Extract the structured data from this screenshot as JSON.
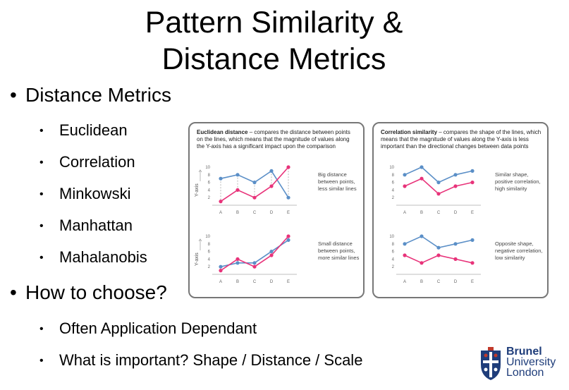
{
  "slide": {
    "title_line1": "Pattern Similarity &",
    "title_line2": "Distance Metrics"
  },
  "bullets": {
    "b1": "Distance Metrics",
    "sub1": [
      "Euclidean",
      "Correlation",
      "Minkowski",
      "Manhattan",
      "Mahalanobis"
    ],
    "b2": "How to choose?",
    "sub2": [
      "Often Application Dependant",
      "What is important? Shape / Distance / Scale"
    ],
    "marker": "•"
  },
  "figure": {
    "left_caption_bold": "Euclidean distance",
    "left_caption_rest": " – compares the distance between points on the lines, which means that the magnitude of values along the Y-axis has a significant impact upon the comparison",
    "right_caption_bold": "Correlation similarity",
    "right_caption_rest": " – compares the shape of the lines, which means that the magnitude of values along the Y-axis is less important than the directional changes between data points",
    "notes": {
      "tl": [
        "Big distance",
        "between points,",
        "less similar lines"
      ],
      "bl": [
        "Small distance",
        "between points,",
        "more similar lines"
      ],
      "tr": [
        "Similar shape,",
        "positive correlation,",
        "high similarity"
      ],
      "br": [
        "Opposite shape,",
        "negative correlation,",
        "low similarity"
      ]
    },
    "y_axis_label": "Y-axis",
    "colors": {
      "blue": "#5b8fc7",
      "pink": "#e8337a"
    }
  },
  "chart_data": [
    {
      "type": "line",
      "categories": [
        "A",
        "B",
        "C",
        "D",
        "E"
      ],
      "yticks": [
        2,
        4,
        6,
        8,
        10
      ],
      "ylim": [
        0,
        10
      ],
      "ylabel": "Y-axis",
      "series": [
        {
          "color": "#5b8fc7",
          "values": [
            7,
            8,
            6,
            9,
            2
          ]
        },
        {
          "color": "#e8337a",
          "values": [
            1,
            4,
            2,
            5,
            10
          ]
        }
      ]
    },
    {
      "type": "line",
      "categories": [
        "A",
        "B",
        "C",
        "D",
        "E"
      ],
      "yticks": [
        2,
        4,
        6,
        8,
        10
      ],
      "ylim": [
        0,
        10
      ],
      "ylabel": "Y-axis",
      "series": [
        {
          "color": "#5b8fc7",
          "values": [
            2,
            3,
            3,
            6,
            9
          ]
        },
        {
          "color": "#e8337a",
          "values": [
            1,
            4,
            2,
            5,
            10
          ]
        }
      ]
    },
    {
      "type": "line",
      "categories": [
        "A",
        "B",
        "C",
        "D",
        "E"
      ],
      "yticks": [
        2,
        4,
        6,
        8,
        10
      ],
      "ylim": [
        0,
        10
      ],
      "series": [
        {
          "color": "#5b8fc7",
          "values": [
            8,
            10,
            6,
            8,
            9
          ]
        },
        {
          "color": "#e8337a",
          "values": [
            5,
            7,
            3,
            5,
            6
          ]
        }
      ]
    },
    {
      "type": "line",
      "categories": [
        "A",
        "B",
        "C",
        "D",
        "E"
      ],
      "yticks": [
        2,
        4,
        6,
        8,
        10
      ],
      "ylim": [
        0,
        10
      ],
      "series": [
        {
          "color": "#5b8fc7",
          "values": [
            8,
            10,
            7,
            8,
            9
          ]
        },
        {
          "color": "#e8337a",
          "values": [
            5,
            3,
            5,
            4,
            3
          ]
        }
      ]
    }
  ],
  "logo": {
    "line1": "Brunel",
    "line2": "University",
    "line3": "London"
  }
}
